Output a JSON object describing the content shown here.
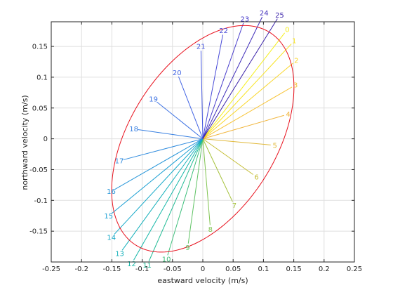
{
  "chart_data": {
    "type": "line",
    "title": "",
    "xlabel": "eastward velocity (m/s)",
    "ylabel": "northward velocity (m/s)",
    "xlim": [
      -0.25,
      0.25
    ],
    "ylim": [
      -0.2,
      0.19
    ],
    "xticks": [
      -0.25,
      -0.2,
      -0.15,
      -0.1,
      -0.05,
      0,
      0.05,
      0.1,
      0.15,
      0.2,
      0.25
    ],
    "xtick_labels": [
      "-0.25",
      "-0.2",
      "-0.15",
      "-0.1",
      "-0.05",
      "0",
      "0.05",
      "0.1",
      "0.15",
      "0.2",
      "0.25"
    ],
    "yticks": [
      -0.15,
      -0.1,
      -0.05,
      0,
      0.05,
      0.1,
      0.15
    ],
    "ytick_labels": [
      "-0.15",
      "-0.1",
      "-0.05",
      "0",
      "0.05",
      "0.1",
      "0.15"
    ],
    "grid": true,
    "colormap": "parula",
    "vectors": [
      {
        "label": "0",
        "u": 0.135,
        "v": 0.172,
        "color": "#f5ef1a"
      },
      {
        "label": "1",
        "u": 0.146,
        "v": 0.154,
        "color": "#f8e31f"
      },
      {
        "label": "2",
        "u": 0.149,
        "v": 0.123,
        "color": "#f9d629"
      },
      {
        "label": "3",
        "u": 0.147,
        "v": 0.084,
        "color": "#f7c335"
      },
      {
        "label": "4",
        "u": 0.134,
        "v": 0.038,
        "color": "#f1b53c"
      },
      {
        "label": "5",
        "u": 0.112,
        "v": -0.01,
        "color": "#e1b93a"
      },
      {
        "label": "6",
        "u": 0.083,
        "v": -0.058,
        "color": "#c5be35"
      },
      {
        "label": "7",
        "u": 0.049,
        "v": -0.102,
        "color": "#a5c13b"
      },
      {
        "label": "8",
        "u": 0.012,
        "v": -0.14,
        "color": "#80c450"
      },
      {
        "label": "9",
        "u": -0.024,
        "v": -0.17,
        "color": "#5ec263"
      },
      {
        "label": "10",
        "u": -0.058,
        "v": -0.189,
        "color": "#3fbf7c"
      },
      {
        "label": "11",
        "u": -0.089,
        "v": -0.199,
        "color": "#23bb95"
      },
      {
        "label": "12",
        "u": -0.114,
        "v": -0.197,
        "color": "#15b7a8"
      },
      {
        "label": "13",
        "u": -0.133,
        "v": -0.181,
        "color": "#14b0ba"
      },
      {
        "label": "14",
        "u": -0.146,
        "v": -0.155,
        "color": "#13a8c8"
      },
      {
        "label": "15",
        "u": -0.15,
        "v": -0.121,
        "color": "#1a9fd3"
      },
      {
        "label": "16",
        "u": -0.145,
        "v": -0.082,
        "color": "#2595d9"
      },
      {
        "label": "17",
        "u": -0.131,
        "v": -0.034,
        "color": "#2f8bde"
      },
      {
        "label": "18",
        "u": -0.107,
        "v": 0.015,
        "color": "#377fe1"
      },
      {
        "label": "19",
        "u": -0.076,
        "v": 0.06,
        "color": "#3d72e3"
      },
      {
        "label": "20",
        "u": -0.04,
        "v": 0.101,
        "color": "#4264e3"
      },
      {
        "label": "21",
        "u": -0.003,
        "v": 0.143,
        "color": "#4557df"
      },
      {
        "label": "22",
        "u": 0.033,
        "v": 0.169,
        "color": "#4749d7"
      },
      {
        "label": "23",
        "u": 0.067,
        "v": 0.188,
        "color": "#473bcb"
      },
      {
        "label": "24",
        "u": 0.098,
        "v": 0.198,
        "color": "#402eba"
      },
      {
        "label": "25",
        "u": 0.123,
        "v": 0.195,
        "color": "#3a22a9"
      }
    ],
    "ellipse": {
      "center": [
        0,
        0
      ],
      "semi_major": 0.205,
      "semi_minor": 0.12,
      "angle_deg": 57,
      "color": "#e8101c"
    }
  }
}
